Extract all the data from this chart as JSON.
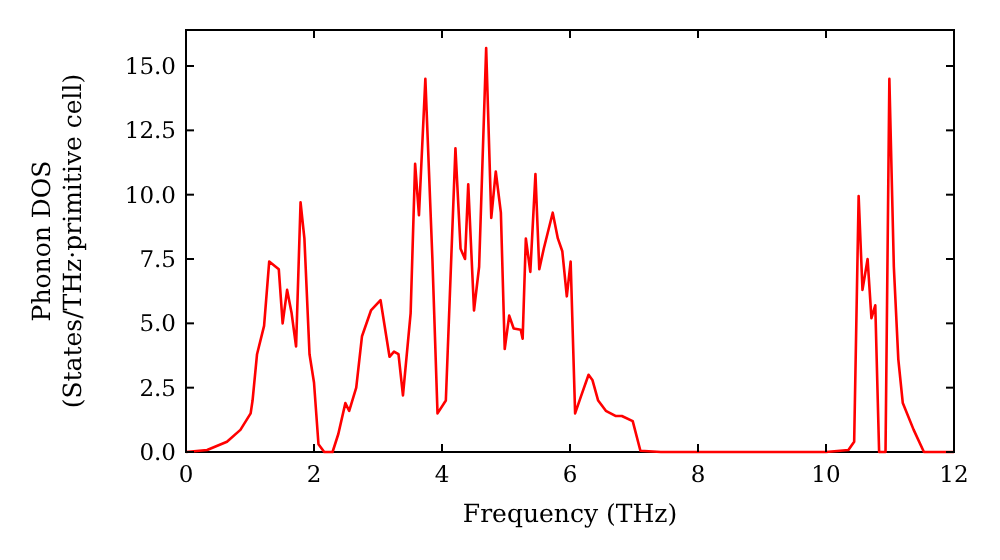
{
  "chart_data": {
    "type": "line",
    "xlabel": "Frequency (THz)",
    "ylabel": "Phonon DOS\n(States/THz·primitive cell)",
    "xlim": [
      0,
      12
    ],
    "ylim": [
      0,
      16.4
    ],
    "xticks": [
      0,
      2,
      4,
      6,
      8,
      10,
      12
    ],
    "yticks": [
      {
        "value": 0,
        "label": "0.0"
      },
      {
        "value": 2.5,
        "label": "2.5"
      },
      {
        "value": 5,
        "label": "5.0"
      },
      {
        "value": 7.5,
        "label": "7.5"
      },
      {
        "value": 10,
        "label": "10.0"
      },
      {
        "value": 12.5,
        "label": "12.5"
      },
      {
        "value": 15,
        "label": "15.0"
      }
    ],
    "grid": false,
    "marker": "none",
    "line_style": "solid",
    "series": [
      {
        "color": "#ff0000",
        "x": [
          0,
          0.33,
          0.64,
          0.85,
          1.01,
          1.04,
          1.11,
          1.22,
          1.3,
          1.45,
          1.51,
          1.58,
          1.65,
          1.72,
          1.79,
          1.85,
          1.93,
          2.0,
          2.07,
          2.16,
          2.29,
          2.38,
          2.49,
          2.55,
          2.66,
          2.75,
          2.89,
          3.04,
          3.18,
          3.25,
          3.32,
          3.39,
          3.51,
          3.58,
          3.64,
          3.74,
          3.85,
          3.93,
          4.06,
          4.21,
          4.29,
          4.36,
          4.41,
          4.5,
          4.58,
          4.69,
          4.77,
          4.84,
          4.92,
          4.98,
          5.05,
          5.12,
          5.23,
          5.26,
          5.31,
          5.38,
          5.46,
          5.52,
          5.59,
          5.73,
          5.81,
          5.88,
          5.95,
          6.01,
          6.08,
          6.17,
          6.29,
          6.35,
          6.44,
          6.56,
          6.71,
          6.81,
          6.98,
          7.1,
          7.42,
          8,
          9,
          10,
          10.35,
          10.44,
          10.51,
          10.57,
          10.65,
          10.71,
          10.77,
          10.83,
          10.93,
          10.99,
          11.06,
          11.13,
          11.2,
          11.37,
          11.53,
          12
        ],
        "values": [
          0,
          0.08,
          0.4,
          0.86,
          1.5,
          2.0,
          3.8,
          4.9,
          7.4,
          7.1,
          5.0,
          6.3,
          5.4,
          4.1,
          9.7,
          8.3,
          3.8,
          2.7,
          0.3,
          0,
          0,
          0.7,
          1.9,
          1.6,
          2.5,
          4.5,
          5.5,
          5.9,
          3.7,
          3.9,
          3.8,
          2.2,
          5.4,
          11.2,
          9.2,
          14.5,
          7.5,
          1.5,
          2.0,
          11.8,
          7.9,
          7.5,
          10.4,
          5.5,
          7.2,
          15.7,
          9.1,
          10.9,
          9.3,
          4.0,
          5.3,
          4.8,
          4.75,
          4.4,
          8.3,
          7.0,
          10.8,
          7.1,
          7.9,
          9.3,
          8.3,
          7.8,
          6.05,
          7.4,
          1.5,
          2.15,
          3.0,
          2.8,
          2.0,
          1.6,
          1.4,
          1.4,
          1.2,
          0.05,
          0,
          0,
          0,
          0,
          0.08,
          0.4,
          9.95,
          6.3,
          7.5,
          5.2,
          5.7,
          0,
          0,
          14.5,
          7.2,
          3.6,
          1.9,
          0.86,
          0,
          0
        ]
      }
    ]
  }
}
